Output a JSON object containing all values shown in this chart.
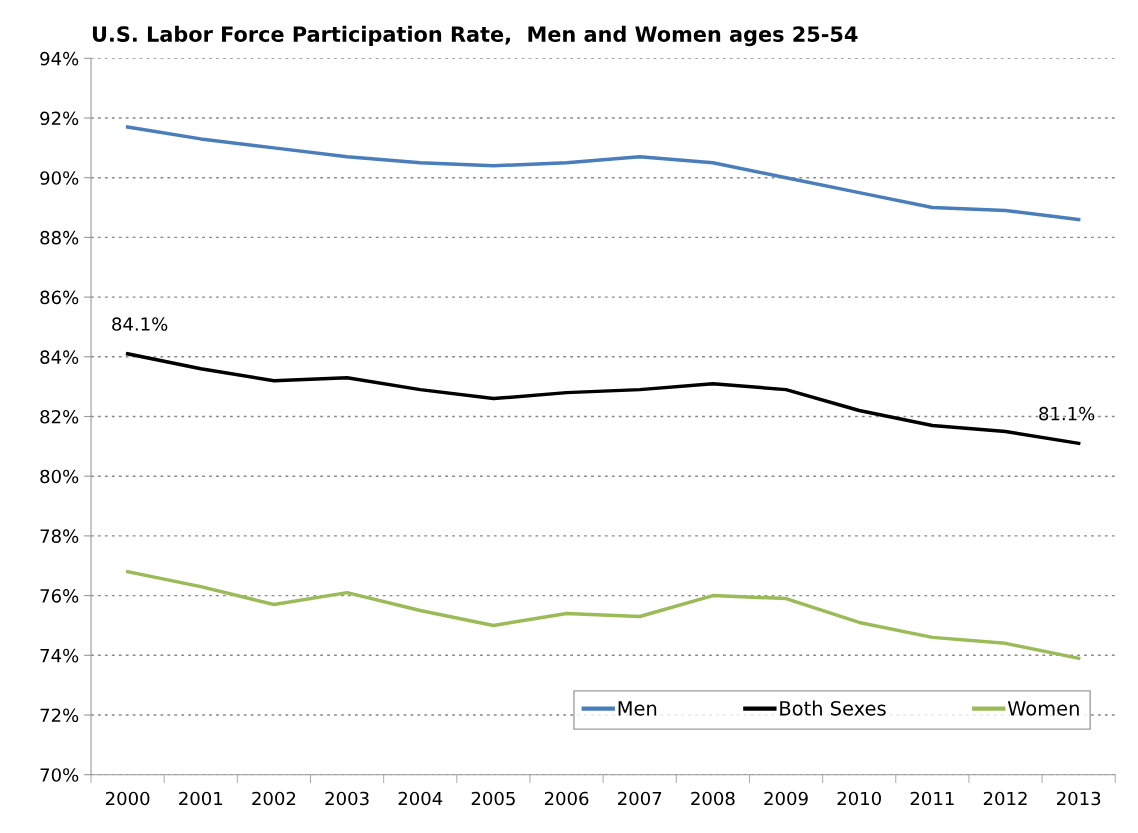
{
  "chart_data": {
    "type": "line",
    "title": "U.S. Labor Force Participation Rate,  Men and Women ages 25-54",
    "categories": [
      "2000",
      "2001",
      "2002",
      "2003",
      "2004",
      "2005",
      "2006",
      "2007",
      "2008",
      "2009",
      "2010",
      "2011",
      "2012",
      "2013"
    ],
    "series": [
      {
        "name": "Men",
        "color": "#4a7ebb",
        "values": [
          91.7,
          91.3,
          91.0,
          90.7,
          90.5,
          90.4,
          90.5,
          90.7,
          90.5,
          90.0,
          89.5,
          89.0,
          88.9,
          88.6
        ]
      },
      {
        "name": "Both Sexes",
        "color": "#000000",
        "values": [
          84.1,
          83.6,
          83.2,
          83.3,
          82.9,
          82.6,
          82.8,
          82.9,
          83.1,
          82.9,
          82.2,
          81.7,
          81.5,
          81.1
        ],
        "value_labels": [
          "84.1%",
          null,
          null,
          null,
          null,
          null,
          null,
          null,
          null,
          null,
          null,
          null,
          null,
          "81.1%"
        ]
      },
      {
        "name": "Women",
        "color": "#9bbb59",
        "values": [
          76.8,
          76.3,
          75.7,
          76.1,
          75.5,
          75.0,
          75.4,
          75.3,
          76.0,
          75.9,
          75.1,
          74.6,
          74.4,
          73.9
        ]
      }
    ],
    "ylim": [
      70,
      94
    ],
    "yticks": [
      {
        "value": 70,
        "label": "70%"
      },
      {
        "value": 72,
        "label": "72%"
      },
      {
        "value": 74,
        "label": "74%"
      },
      {
        "value": 76,
        "label": "76%"
      },
      {
        "value": 78,
        "label": "78%"
      },
      {
        "value": 80,
        "label": "80%"
      },
      {
        "value": 82,
        "label": "82%"
      },
      {
        "value": 84,
        "label": "84%"
      },
      {
        "value": 86,
        "label": "86%"
      },
      {
        "value": 88,
        "label": "88%"
      },
      {
        "value": 90,
        "label": "90%"
      },
      {
        "value": 92,
        "label": "92%"
      },
      {
        "value": 94,
        "label": "94%"
      }
    ],
    "grid": "y",
    "legend": "bottom right",
    "marker": "none",
    "line_style": "solid"
  }
}
